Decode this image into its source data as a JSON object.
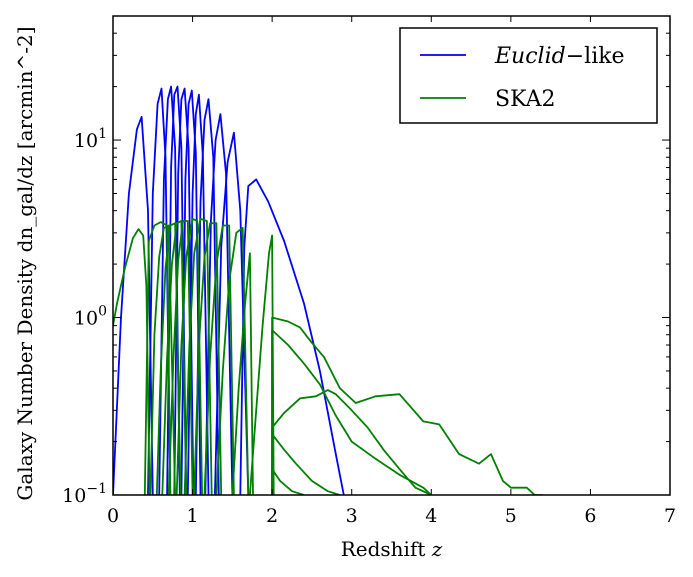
{
  "chart_data": {
    "type": "line",
    "title": "",
    "xlabel": "Redshift z",
    "ylabel": "Galaxy Number Density dn_gal/dz [arcmin^-2]",
    "xlim": [
      0,
      7
    ],
    "ylim": [
      0.1,
      50
    ],
    "yscale": "log",
    "grid": false,
    "legend_position": "top-right",
    "x_ticks": [
      {
        "value": 0,
        "label": "0"
      },
      {
        "value": 1,
        "label": "1"
      },
      {
        "value": 2,
        "label": "2"
      },
      {
        "value": 3,
        "label": "3"
      },
      {
        "value": 4,
        "label": "4"
      },
      {
        "value": 5,
        "label": "5"
      },
      {
        "value": 6,
        "label": "6"
      },
      {
        "value": 7,
        "label": "7"
      }
    ],
    "y_ticks": [
      {
        "value": 0.1,
        "base": "10",
        "exp": "−1"
      },
      {
        "value": 1,
        "base": "10",
        "exp": "0"
      },
      {
        "value": 10,
        "base": "10",
        "exp": "1"
      }
    ],
    "legend": [
      {
        "label_italic": "Euclid",
        "label_rest": "−like",
        "color": "#0000ff"
      },
      {
        "label_italic": "",
        "label_rest": "SKA2",
        "color": "#008000"
      }
    ],
    "series": [
      {
        "name": "Euclid-like",
        "color": "#0000ff",
        "bins": [
          {
            "x": [
              0.0,
              0.1,
              0.2,
              0.3,
              0.36,
              0.44,
              0.5
            ],
            "y": [
              0.1,
              1.0,
              5.0,
              11.5,
              13.5,
              4.0,
              0.1
            ]
          },
          {
            "x": [
              0.44,
              0.5,
              0.56,
              0.61,
              0.66,
              0.72
            ],
            "y": [
              0.1,
              5.0,
              16.0,
              19.5,
              8.0,
              0.1
            ]
          },
          {
            "x": [
              0.58,
              0.64,
              0.69,
              0.73,
              0.78,
              0.84
            ],
            "y": [
              0.1,
              6.0,
              17.0,
              20.0,
              9.0,
              0.1
            ]
          },
          {
            "x": [
              0.68,
              0.73,
              0.77,
              0.81,
              0.86,
              0.92
            ],
            "y": [
              0.1,
              7.0,
              18.0,
              20.0,
              9.0,
              0.1
            ]
          },
          {
            "x": [
              0.77,
              0.82,
              0.86,
              0.9,
              0.95,
              1.01
            ],
            "y": [
              0.1,
              6.5,
              17.0,
              19.5,
              9.0,
              0.1
            ]
          },
          {
            "x": [
              0.86,
              0.91,
              0.95,
              0.99,
              1.04,
              1.1
            ],
            "y": [
              0.1,
              6.0,
              16.0,
              19.0,
              8.5,
              0.1
            ]
          },
          {
            "x": [
              0.94,
              1.0,
              1.04,
              1.08,
              1.13,
              1.2
            ],
            "y": [
              0.1,
              5.0,
              14.0,
              18.0,
              8.0,
              0.1
            ]
          },
          {
            "x": [
              1.04,
              1.1,
              1.15,
              1.2,
              1.26,
              1.33
            ],
            "y": [
              0.1,
              4.5,
              13.0,
              17.0,
              8.0,
              0.1
            ]
          },
          {
            "x": [
              1.16,
              1.23,
              1.29,
              1.35,
              1.42,
              1.5
            ],
            "y": [
              0.1,
              3.5,
              10.0,
              14.0,
              6.5,
              0.1
            ]
          },
          {
            "x": [
              1.28,
              1.36,
              1.44,
              1.52,
              1.6,
              1.7
            ],
            "y": [
              0.1,
              2.5,
              7.5,
              11.0,
              4.0,
              0.1
            ]
          },
          {
            "x": [
              1.6,
              1.65,
              1.7,
              1.8,
              1.95,
              2.15,
              2.4,
              2.6,
              2.8,
              2.9
            ],
            "y": [
              0.1,
              2.5,
              5.5,
              6.0,
              4.5,
              2.7,
              1.2,
              0.5,
              0.17,
              0.1
            ]
          }
        ]
      },
      {
        "name": "SKA2",
        "color": "#008000",
        "bins": [
          {
            "x": [
              0.0,
              0.05,
              0.15,
              0.25,
              0.32,
              0.38,
              0.42,
              0.46
            ],
            "y": [
              0.9,
              1.2,
              1.9,
              2.8,
              3.15,
              2.9,
              1.5,
              0.1
            ]
          },
          {
            "x": [
              0.4,
              0.45,
              0.52,
              0.6,
              0.68,
              0.72
            ],
            "y": [
              0.1,
              2.7,
              3.3,
              3.45,
              3.3,
              0.1
            ]
          },
          {
            "x": [
              0.47,
              0.52,
              0.58,
              0.64,
              0.7,
              0.78
            ],
            "y": [
              0.1,
              0.8,
              2.2,
              3.2,
              3.3,
              0.1
            ]
          },
          {
            "x": [
              0.55,
              0.6,
              0.66,
              0.72,
              0.78,
              0.85
            ],
            "y": [
              0.1,
              0.5,
              1.9,
              3.3,
              3.4,
              0.1
            ]
          },
          {
            "x": [
              0.62,
              0.68,
              0.74,
              0.8,
              0.86,
              0.92
            ],
            "y": [
              0.1,
              0.6,
              2.0,
              3.4,
              3.5,
              0.1
            ]
          },
          {
            "x": [
              0.7,
              0.76,
              0.82,
              0.88,
              0.94,
              1.0
            ],
            "y": [
              0.1,
              0.6,
              2.1,
              3.5,
              3.5,
              0.1
            ]
          },
          {
            "x": [
              0.8,
              0.86,
              0.92,
              1.0,
              1.06,
              1.12
            ],
            "y": [
              0.1,
              0.7,
              2.2,
              3.6,
              3.5,
              0.1
            ]
          },
          {
            "x": [
              0.9,
              0.96,
              1.02,
              1.1,
              1.18,
              1.24
            ],
            "y": [
              0.1,
              0.7,
              2.3,
              3.6,
              3.5,
              0.1
            ]
          },
          {
            "x": [
              1.02,
              1.08,
              1.15,
              1.22,
              1.3,
              1.36
            ],
            "y": [
              0.1,
              0.7,
              2.2,
              3.4,
              3.4,
              0.1
            ]
          },
          {
            "x": [
              1.15,
              1.22,
              1.3,
              1.38,
              1.46,
              1.52
            ],
            "y": [
              0.1,
              0.6,
              2.0,
              3.3,
              3.3,
              0.1
            ]
          },
          {
            "x": [
              1.3,
              1.38,
              1.46,
              1.55,
              1.63,
              1.7
            ],
            "y": [
              0.1,
              0.5,
              1.6,
              3.0,
              3.2,
              0.1
            ]
          },
          {
            "x": [
              1.5,
              1.58,
              1.66,
              1.72,
              1.76
            ],
            "y": [
              0.1,
              0.4,
              1.2,
              2.3,
              0.1
            ]
          },
          {
            "x": [
              1.72,
              1.8,
              1.88,
              1.96,
              2.0,
              2.02
            ],
            "y": [
              0.1,
              0.3,
              0.9,
              2.3,
              2.9,
              0.1
            ]
          },
          {
            "x": [
              2.0,
              2.0,
              2.2,
              2.35,
              2.5,
              2.65,
              2.85,
              3.05,
              3.3,
              3.6,
              3.9,
              4.1,
              4.35,
              4.6,
              4.75,
              4.9,
              5.0,
              5.2,
              5.3,
              5.4
            ],
            "y": [
              0.1,
              1.0,
              0.95,
              0.88,
              0.72,
              0.6,
              0.4,
              0.33,
              0.36,
              0.37,
              0.26,
              0.25,
              0.17,
              0.15,
              0.17,
              0.12,
              0.11,
              0.11,
              0.1,
              0.1
            ]
          },
          {
            "x": [
              2.0,
              2.0,
              2.2,
              2.4,
              2.6,
              2.8,
              3.0,
              3.3,
              3.6,
              3.9,
              4.0
            ],
            "y": [
              0.1,
              0.85,
              0.7,
              0.55,
              0.42,
              0.28,
              0.2,
              0.16,
              0.13,
              0.11,
              0.1
            ]
          },
          {
            "x": [
              2.0,
              2.0,
              2.15,
              2.35,
              2.55,
              2.7,
              2.8,
              3.0,
              3.2,
              3.4,
              3.6,
              3.8,
              4.0
            ],
            "y": [
              0.22,
              0.24,
              0.29,
              0.35,
              0.36,
              0.39,
              0.37,
              0.3,
              0.24,
              0.18,
              0.14,
              0.11,
              0.1
            ]
          },
          {
            "x": [
              2.0,
              2.0,
              2.15,
              2.3,
              2.5,
              2.7,
              2.85
            ],
            "y": [
              0.1,
              0.22,
              0.18,
              0.15,
              0.12,
              0.105,
              0.1
            ]
          },
          {
            "x": [
              2.0,
              2.0,
              2.1,
              2.25,
              2.4
            ],
            "y": [
              0.1,
              0.14,
              0.12,
              0.105,
              0.1
            ]
          }
        ]
      }
    ]
  }
}
